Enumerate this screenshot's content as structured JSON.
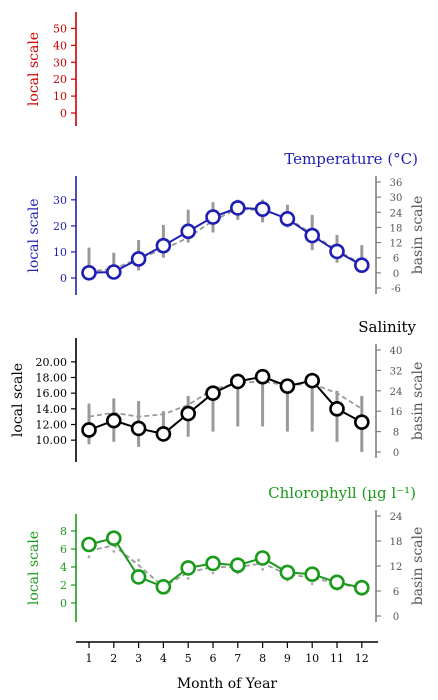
{
  "chart_data": [
    {
      "type": "line",
      "panel": "empty-top",
      "title": "",
      "ylabel": "local scale",
      "ylabel_right": "",
      "ylim": [
        0,
        55
      ],
      "yticks": [
        "0",
        "10",
        "20",
        "30",
        "40",
        "50"
      ],
      "yticks_right": [],
      "color": "#cc0000",
      "series": []
    },
    {
      "type": "line",
      "panel": "temperature",
      "title": "Temperature (°C)",
      "ylabel": "local scale",
      "ylabel_right": "basin scale",
      "ylim": [
        0,
        33
      ],
      "ylim_right": [
        -6,
        36
      ],
      "yticks": [
        "0",
        "10",
        "20",
        "30"
      ],
      "yticks_right": [
        "-6",
        "0",
        "6",
        "12",
        "18",
        "24",
        "30",
        "36"
      ],
      "color": "#1f1fb4",
      "x": [
        1,
        2,
        3,
        4,
        5,
        6,
        7,
        8,
        9,
        10,
        11,
        12
      ],
      "local": [
        2.0,
        2.3,
        7.3,
        12.4,
        17.9,
        23.4,
        26.9,
        26.4,
        22.7,
        16.3,
        10.2,
        4.9
      ],
      "basin_mean": [
        2.5,
        3.5,
        7.5,
        11.0,
        15.5,
        22.0,
        26.5,
        26.0,
        23.0,
        17.0,
        10.5,
        5.5
      ],
      "range": [
        [
          -1,
          10
        ],
        [
          -1,
          8
        ],
        [
          1,
          13
        ],
        [
          6,
          19
        ],
        [
          12,
          25
        ],
        [
          16,
          28
        ],
        [
          21,
          29
        ],
        [
          20,
          29
        ],
        [
          18,
          27
        ],
        [
          9,
          23
        ],
        [
          4,
          15
        ],
        [
          0,
          11
        ]
      ]
    },
    {
      "type": "line",
      "panel": "salinity",
      "title": "Salinity",
      "ylabel": "local scale",
      "ylabel_right": "basin scale",
      "ylim": [
        9,
        21
      ],
      "ylim_right": [
        0,
        40
      ],
      "yticks": [
        "10.00",
        "12.00",
        "14.00",
        "16.00",
        "18.00",
        "20.00"
      ],
      "yticks_right": [
        "0",
        "8",
        "16",
        "24",
        "32",
        "40"
      ],
      "color": "#000000",
      "x": [
        1,
        2,
        3,
        4,
        5,
        6,
        7,
        8,
        9,
        10,
        11,
        12
      ],
      "local": [
        11.3,
        12.5,
        11.5,
        10.8,
        13.4,
        16.0,
        17.5,
        18.1,
        16.9,
        17.6,
        14.0,
        12.3
      ],
      "basin_mean": [
        13.0,
        13.5,
        13.0,
        13.3,
        14.5,
        16.5,
        17.3,
        17.5,
        17.0,
        17.2,
        16.0,
        14.0
      ],
      "range": [
        [
          3,
          19
        ],
        [
          4,
          21
        ],
        [
          2,
          20
        ],
        [
          4,
          16
        ],
        [
          6,
          22
        ],
        [
          8,
          26
        ],
        [
          10,
          28
        ],
        [
          10,
          28
        ],
        [
          8,
          27
        ],
        [
          8,
          28
        ],
        [
          4,
          24
        ],
        [
          0,
          22
        ]
      ]
    },
    {
      "type": "line",
      "panel": "chlorophyll",
      "title": "Chlorophyll (µg l⁻¹)",
      "ylabel": "local scale",
      "ylabel_right": "basin scale",
      "ylim": [
        -1,
        9
      ],
      "ylim_right": [
        0,
        24
      ],
      "yticks": [
        "0",
        "2",
        "4",
        "6",
        "8"
      ],
      "yticks_right": [
        "0",
        "6",
        "12",
        "18",
        "24"
      ],
      "color": "#1a9a1a",
      "x": [
        1,
        2,
        3,
        4,
        5,
        6,
        7,
        8,
        9,
        10,
        11,
        12
      ],
      "local": [
        6.5,
        7.2,
        2.9,
        1.8,
        3.9,
        4.4,
        4.2,
        5.0,
        3.4,
        3.2,
        2.3,
        1.7
      ],
      "basin_mean": [
        5.8,
        6.4,
        4.2,
        1.8,
        3.4,
        4.0,
        4.0,
        4.4,
        3.2,
        2.8,
        2.2,
        1.6
      ]
    }
  ],
  "xaxis": {
    "label": "Month of Year",
    "ticks": [
      "1",
      "2",
      "3",
      "4",
      "5",
      "6",
      "7",
      "8",
      "9",
      "10",
      "11",
      "12"
    ]
  }
}
